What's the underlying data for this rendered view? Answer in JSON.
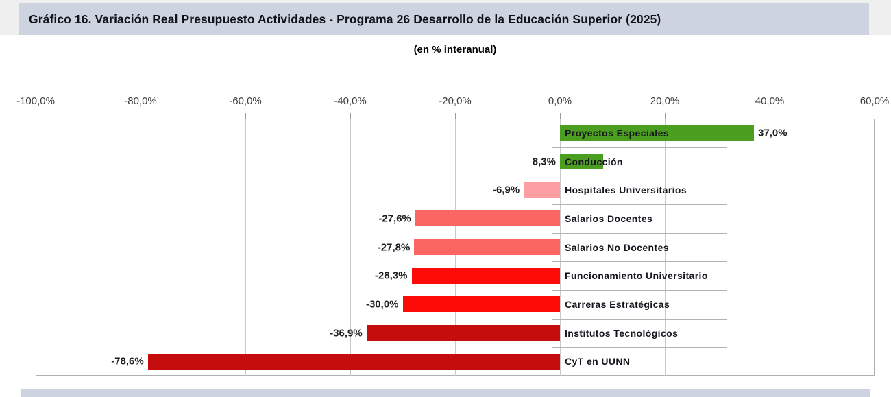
{
  "header": {
    "title": "Gráfico 16. Variación Real Presupuesto Actividades - Programa 26 Desarrollo de la Educación Superior (2025)"
  },
  "subtitle": "(en % interanual)",
  "colors": {
    "banner_bg": "#ced3e0",
    "page_edge_bg": "#efefef",
    "plot_border": "#b0b0b0",
    "gridline": "#c9c9c9",
    "green": "#4c9e21",
    "light_pink": "#fc9ea2",
    "salmon": "#fc6662",
    "bright_red": "#fd0b06",
    "dark_red": "#c60d0e"
  },
  "chart_data": {
    "type": "bar",
    "orientation": "horizontal",
    "title": "Gráfico 16. Variación Real Presupuesto Actividades - Programa 26 Desarrollo de la Educación Superior (2025)",
    "subtitle": "(en % interanual)",
    "xlabel": "",
    "ylabel": "",
    "grid": true,
    "x_axis": {
      "min": -100,
      "max": 60,
      "tick_step": 20,
      "tick_values": [
        -100,
        -80,
        -60,
        -40,
        -20,
        0,
        20,
        40,
        60
      ],
      "tick_labels": [
        "-100,0%",
        "-80,0%",
        "-60,0%",
        "-40,0%",
        "-20,0%",
        "0,0%",
        "20,0%",
        "40,0%",
        "60,0%"
      ]
    },
    "categories": [
      "Proyectos Especiales",
      "Conducción",
      "Hospitales Universitarios",
      "Salarios Docentes",
      "Salarios No Docentes",
      "Funcionamiento Universitario",
      "Carreras Estratégicas",
      "Institutos Tecnológicos",
      "CyT en UUNN"
    ],
    "values": [
      37.0,
      8.3,
      -6.9,
      -27.6,
      -27.8,
      -28.3,
      -30.0,
      -36.9,
      -78.6
    ],
    "value_labels": [
      "37,0%",
      "8,3%",
      "-6,9%",
      "-27,6%",
      "-27,8%",
      "-28,3%",
      "-30,0%",
      "-36,9%",
      "-78,6%"
    ],
    "value_label_side": [
      "end",
      "start",
      "start",
      "start",
      "start",
      "start",
      "start",
      "start",
      "start"
    ],
    "bar_colors": [
      "#4c9e21",
      "#4c9e21",
      "#fc9ea2",
      "#fc6662",
      "#fc6662",
      "#fd0b06",
      "#fd0b06",
      "#c60d0e",
      "#c60d0e"
    ]
  }
}
